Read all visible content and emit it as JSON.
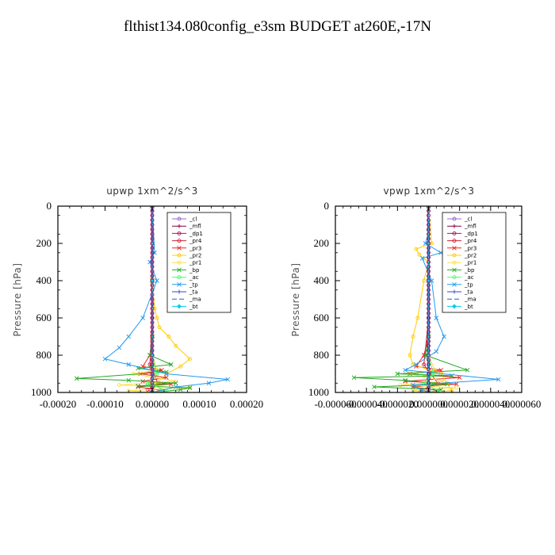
{
  "title": "flthist134.080config_e3sm  BUDGET at260E,-17N",
  "chart_data": [
    {
      "type": "line",
      "title": "upwp   1xm^2/s^3",
      "ylabel": "Pressure [hPa]",
      "xlim": [
        -0.0002,
        0.0002
      ],
      "ylim": [
        1000,
        0
      ],
      "xticks": [
        "-0.00020",
        "-0.00010",
        "0.00000",
        "0.00010",
        "0.00020"
      ],
      "xtick_values": [
        -0.0002,
        -0.0001,
        0,
        0.0001,
        0.0002
      ],
      "yticks": [
        "0",
        "200",
        "400",
        "600",
        "800",
        "1000"
      ],
      "ytick_values": [
        0,
        200,
        400,
        600,
        800,
        1000
      ],
      "legend_position": "top-right",
      "series": [
        {
          "name": "_cl",
          "color": "#9966cc",
          "dash": "",
          "marker": "circle",
          "x": [
            0,
            0,
            0,
            0,
            0,
            0,
            0
          ],
          "y": [
            0,
            200,
            400,
            600,
            800,
            950,
            1000
          ]
        },
        {
          "name": "_mfl",
          "color": "#880044",
          "dash": "",
          "marker": "plus",
          "x": [
            0,
            0,
            0,
            0,
            0,
            0,
            0
          ],
          "y": [
            0,
            200,
            400,
            600,
            800,
            950,
            1000
          ]
        },
        {
          "name": "_dp1",
          "color": "#aa1166",
          "dash": "",
          "marker": "circle",
          "x": [
            0,
            0,
            0,
            0,
            0,
            0,
            0
          ],
          "y": [
            0,
            200,
            400,
            600,
            800,
            950,
            1000
          ]
        },
        {
          "name": "_pr4",
          "color": "#cc2233",
          "dash": "",
          "marker": "circle",
          "x": [
            0,
            0,
            0,
            0,
            -5e-06,
            1.2e-05,
            -1e-05,
            0
          ],
          "y": [
            0,
            200,
            400,
            600,
            850,
            950,
            985,
            1000
          ]
        },
        {
          "name": "_pr3",
          "color": "#ee2222",
          "dash": "",
          "marker": "cross",
          "x": [
            0,
            0,
            0,
            -5e-06,
            -2e-05,
            2e-05,
            -2.5e-05,
            3e-05,
            -2e-05,
            4e-05,
            -3e-05,
            2e-05,
            0
          ],
          "y": [
            0,
            400,
            700,
            800,
            860,
            880,
            900,
            920,
            940,
            955,
            970,
            990,
            1000
          ]
        },
        {
          "name": "_pr2",
          "color": "#ffcc00",
          "dash": "",
          "marker": "circle",
          "x": [
            0,
            0,
            0,
            5e-06,
            1e-05,
            1.5e-05,
            3.5e-05,
            5e-05,
            8e-05,
            6e-05,
            3e-05,
            1e-05,
            0
          ],
          "y": [
            0,
            200,
            400,
            550,
            600,
            650,
            700,
            750,
            820,
            860,
            900,
            950,
            1000
          ]
        },
        {
          "name": "_pr1",
          "color": "#ffdd44",
          "dash": "",
          "marker": "circle",
          "x": [
            0,
            0,
            0,
            1e-05,
            -4e-05,
            5e-05,
            -7e-05,
            8e-05,
            -5e-05,
            0
          ],
          "y": [
            0,
            400,
            800,
            880,
            900,
            940,
            960,
            975,
            990,
            1000
          ]
        },
        {
          "name": "_bp",
          "color": "#22aa22",
          "dash": "",
          "marker": "cross",
          "x": [
            0,
            0,
            0,
            -5e-06,
            4e-05,
            -3e-05,
            3e-05,
            -0.00016,
            -5e-05,
            5e-05,
            -3e-05,
            8e-05,
            6e-05,
            0
          ],
          "y": [
            0,
            400,
            700,
            800,
            850,
            870,
            890,
            925,
            935,
            950,
            965,
            975,
            985,
            1000
          ]
        },
        {
          "name": "_ac",
          "color": "#44ff66",
          "dash": "",
          "marker": "circle",
          "x": [
            0,
            0,
            0,
            1e-05,
            -1e-05,
            3e-05,
            0
          ],
          "y": [
            0,
            400,
            800,
            900,
            950,
            990,
            1000
          ]
        },
        {
          "name": "_tp",
          "color": "#2299ee",
          "dash": "",
          "marker": "cross",
          "x": [
            0,
            5e-06,
            -5e-06,
            1e-05,
            -2e-05,
            -5e-05,
            -7e-05,
            -0.0001,
            -5e-05,
            3e-05,
            0.00016,
            0.00012,
            5e-05,
            0
          ],
          "y": [
            0,
            250,
            300,
            400,
            600,
            700,
            760,
            820,
            850,
            900,
            930,
            950,
            970,
            1000
          ]
        },
        {
          "name": "_ta",
          "color": "#3344cc",
          "dash": "",
          "marker": "plus",
          "x": [
            0,
            0,
            0,
            0,
            0
          ],
          "y": [
            0,
            200,
            400,
            800,
            1000
          ]
        },
        {
          "name": "_ma",
          "color": "#2266aa",
          "dash": "6,3",
          "marker": "",
          "x": [
            0,
            0,
            0,
            0,
            0
          ],
          "y": [
            0,
            200,
            400,
            800,
            1000
          ]
        },
        {
          "name": "_bt",
          "color": "#00ccee",
          "dash": "",
          "marker": "diamond",
          "x": [
            0,
            0,
            0,
            0,
            0
          ],
          "y": [
            0,
            200,
            400,
            800,
            1000
          ]
        }
      ]
    },
    {
      "type": "line",
      "title": "vpwp   1xm^2/s^3",
      "ylabel": "Pressure [hPa]",
      "xlim": [
        -6e-05,
        6e-05
      ],
      "ylim": [
        1000,
        0
      ],
      "xticks": [
        "-0.000060",
        "-0.000040",
        "-0.000020",
        "0.000000",
        "0.000020",
        "0.000040",
        "0.000060"
      ],
      "xtick_values": [
        -6e-05,
        -4e-05,
        -2e-05,
        0,
        2e-05,
        4e-05,
        6e-05
      ],
      "yticks": [
        "0",
        "200",
        "400",
        "600",
        "800",
        "1000"
      ],
      "ytick_values": [
        0,
        200,
        400,
        600,
        800,
        1000
      ],
      "legend_position": "top-right",
      "series": [
        {
          "name": "_cl",
          "color": "#9966cc",
          "dash": "",
          "marker": "circle",
          "x": [
            0,
            0,
            0,
            0,
            0,
            0,
            0
          ],
          "y": [
            0,
            200,
            400,
            600,
            800,
            950,
            1000
          ]
        },
        {
          "name": "_mfl",
          "color": "#880044",
          "dash": "",
          "marker": "plus",
          "x": [
            0,
            0,
            0,
            0,
            0,
            0,
            0
          ],
          "y": [
            0,
            200,
            400,
            600,
            800,
            950,
            1000
          ]
        },
        {
          "name": "_dp1",
          "color": "#aa1166",
          "dash": "",
          "marker": "circle",
          "x": [
            0,
            0,
            0,
            0,
            0,
            0,
            0
          ],
          "y": [
            0,
            200,
            400,
            600,
            800,
            950,
            1000
          ]
        },
        {
          "name": "_pr4",
          "color": "#cc2233",
          "dash": "",
          "marker": "circle",
          "x": [
            0,
            0,
            0,
            0,
            -3e-06,
            6e-06,
            -4e-06,
            0
          ],
          "y": [
            0,
            200,
            400,
            600,
            850,
            950,
            985,
            1000
          ]
        },
        {
          "name": "_pr3",
          "color": "#ee2222",
          "dash": "",
          "marker": "cross",
          "x": [
            0,
            0,
            0,
            -3e-06,
            -8e-06,
            8e-06,
            -1.2e-05,
            2e-05,
            -1.5e-05,
            1.8e-05,
            -1e-05,
            6e-06,
            0
          ],
          "y": [
            0,
            400,
            700,
            800,
            860,
            880,
            900,
            920,
            940,
            955,
            970,
            990,
            1000
          ]
        },
        {
          "name": "_pr2",
          "color": "#ffcc00",
          "dash": "",
          "marker": "circle",
          "x": [
            0,
            2e-06,
            -8e-06,
            -6e-06,
            0,
            -3e-06,
            -7e-06,
            -1e-05,
            -1.2e-05,
            -1e-05,
            8e-06,
            1.2e-05,
            1.5e-05,
            0
          ],
          "y": [
            0,
            200,
            230,
            260,
            300,
            400,
            600,
            700,
            800,
            850,
            900,
            950,
            990,
            1000
          ]
        },
        {
          "name": "_pr1",
          "color": "#ffdd44",
          "dash": "",
          "marker": "circle",
          "x": [
            0,
            0,
            0,
            4e-06,
            -1.2e-05,
            1e-05,
            -1.8e-05,
            1.8e-05,
            -1e-05,
            0
          ],
          "y": [
            0,
            400,
            800,
            880,
            900,
            940,
            960,
            975,
            990,
            1000
          ]
        },
        {
          "name": "_bp",
          "color": "#22aa22",
          "dash": "",
          "marker": "cross",
          "x": [
            0,
            0,
            0,
            -2e-06,
            2.5e-05,
            -2e-05,
            1.5e-05,
            -4.8e-05,
            -1.5e-05,
            1.2e-05,
            -3.5e-05,
            8e-06,
            0
          ],
          "y": [
            0,
            400,
            700,
            800,
            880,
            900,
            910,
            920,
            935,
            955,
            970,
            985,
            1000
          ]
        },
        {
          "name": "_ac",
          "color": "#44ff66",
          "dash": "",
          "marker": "circle",
          "x": [
            0,
            0,
            0,
            3e-06,
            -3e-06,
            6e-06,
            0
          ],
          "y": [
            0,
            400,
            800,
            900,
            950,
            990,
            1000
          ]
        },
        {
          "name": "_tp",
          "color": "#2299ee",
          "dash": "",
          "marker": "cross",
          "x": [
            0,
            0,
            -2e-06,
            8e-06,
            -4e-06,
            2e-06,
            5e-06,
            1e-05,
            5e-06,
            -8e-06,
            -1.5e-05,
            4.5e-05,
            -1e-05,
            -5e-06,
            0
          ],
          "y": [
            0,
            140,
            200,
            250,
            280,
            400,
            600,
            700,
            780,
            850,
            880,
            930,
            960,
            985,
            1000
          ]
        },
        {
          "name": "_ta",
          "color": "#3344cc",
          "dash": "",
          "marker": "plus",
          "x": [
            0,
            0,
            0,
            0,
            0
          ],
          "y": [
            0,
            200,
            400,
            800,
            1000
          ]
        },
        {
          "name": "_ma",
          "color": "#2266aa",
          "dash": "6,3",
          "marker": "",
          "x": [
            0,
            0,
            0,
            0,
            0
          ],
          "y": [
            0,
            200,
            400,
            800,
            1000
          ]
        },
        {
          "name": "_bt",
          "color": "#00ccee",
          "dash": "",
          "marker": "diamond",
          "x": [
            0,
            0,
            0,
            0,
            0
          ],
          "y": [
            0,
            200,
            400,
            800,
            1000
          ]
        }
      ]
    }
  ]
}
